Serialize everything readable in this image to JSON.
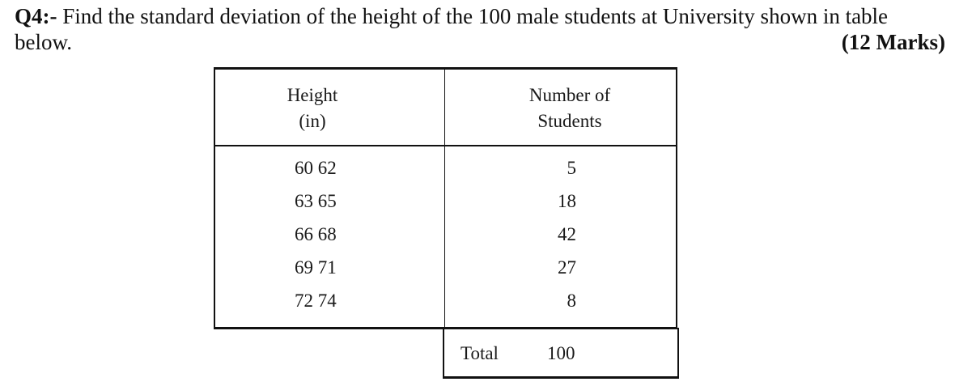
{
  "question": {
    "label": "Q4:-",
    "text": "Find the standard deviation of the height of the 100 male students at University shown in table below.",
    "marks": "(12 Marks)"
  },
  "table": {
    "headers": {
      "height": [
        "Height",
        "(in)"
      ],
      "count": [
        "Number of",
        "Students"
      ]
    },
    "rows": [
      {
        "height": "60 62",
        "count": "5"
      },
      {
        "height": "63 65",
        "count": "18"
      },
      {
        "height": "66 68",
        "count": "42"
      },
      {
        "height": "69 71",
        "count": "27"
      },
      {
        "height": "72 74",
        "count": "8"
      }
    ],
    "total": {
      "label": "Total",
      "value": "100"
    }
  }
}
